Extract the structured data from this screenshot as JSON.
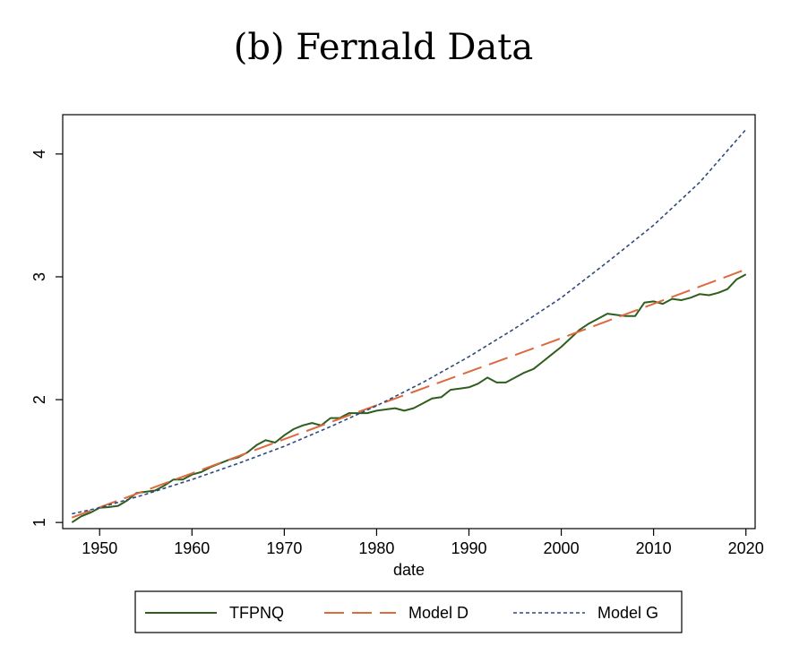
{
  "chart_data": {
    "type": "line",
    "title": "(b) Fernald Data",
    "xlabel": "date",
    "ylabel": "",
    "xlim": [
      1946,
      2021
    ],
    "ylim": [
      0.95,
      4.32
    ],
    "xticks": [
      1950,
      1960,
      1970,
      1980,
      1990,
      2000,
      2010,
      2020
    ],
    "yticks": [
      1,
      2,
      3,
      4
    ],
    "grid": false,
    "legend_position": "bottom",
    "series": [
      {
        "name": "TFPNQ",
        "color": "#2e5e1e",
        "style": "solid",
        "x": [
          1947,
          1948,
          1949,
          1950,
          1951,
          1952,
          1953,
          1954,
          1955,
          1956,
          1957,
          1958,
          1959,
          1960,
          1961,
          1962,
          1963,
          1964,
          1965,
          1966,
          1967,
          1968,
          1969,
          1970,
          1971,
          1972,
          1973,
          1974,
          1975,
          1976,
          1977,
          1978,
          1979,
          1980,
          1981,
          1982,
          1983,
          1984,
          1985,
          1986,
          1987,
          1988,
          1989,
          1990,
          1991,
          1992,
          1993,
          1994,
          1995,
          1996,
          1997,
          1998,
          1999,
          2000,
          2001,
          2002,
          2003,
          2004,
          2005,
          2006,
          2007,
          2008,
          2009,
          2010,
          2011,
          2012,
          2013,
          2014,
          2015,
          2016,
          2017,
          2018,
          2019,
          2020
        ],
        "y": [
          1.0,
          1.05,
          1.08,
          1.12,
          1.125,
          1.135,
          1.18,
          1.24,
          1.25,
          1.26,
          1.3,
          1.35,
          1.35,
          1.39,
          1.41,
          1.45,
          1.48,
          1.51,
          1.53,
          1.57,
          1.63,
          1.67,
          1.65,
          1.71,
          1.76,
          1.79,
          1.81,
          1.79,
          1.85,
          1.85,
          1.89,
          1.89,
          1.89,
          1.91,
          1.92,
          1.93,
          1.91,
          1.93,
          1.97,
          2.01,
          2.02,
          2.08,
          2.09,
          2.1,
          2.13,
          2.18,
          2.14,
          2.14,
          2.18,
          2.22,
          2.25,
          2.31,
          2.37,
          2.43,
          2.5,
          2.57,
          2.62,
          2.66,
          2.7,
          2.69,
          2.68,
          2.68,
          2.79,
          2.8,
          2.78,
          2.82,
          2.81,
          2.83,
          2.86,
          2.85,
          2.87,
          2.9,
          2.98,
          3.02
        ]
      },
      {
        "name": "Model D",
        "color": "#dd6a3e",
        "style": "dashed",
        "x": [
          1947,
          1960,
          1978,
          2000,
          2020
        ],
        "y": [
          1.04,
          1.4,
          1.9,
          2.5,
          3.06
        ]
      },
      {
        "name": "Model G",
        "color": "#2f4a7a",
        "style": "dotted",
        "x": [
          1947,
          1950,
          1955,
          1960,
          1965,
          1970,
          1975,
          1980,
          1985,
          1990,
          1995,
          2000,
          2005,
          2010,
          2015,
          2020
        ],
        "y": [
          1.07,
          1.12,
          1.23,
          1.35,
          1.48,
          1.62,
          1.78,
          1.95,
          2.14,
          2.35,
          2.58,
          2.83,
          3.12,
          3.42,
          3.77,
          4.2
        ]
      }
    ]
  }
}
